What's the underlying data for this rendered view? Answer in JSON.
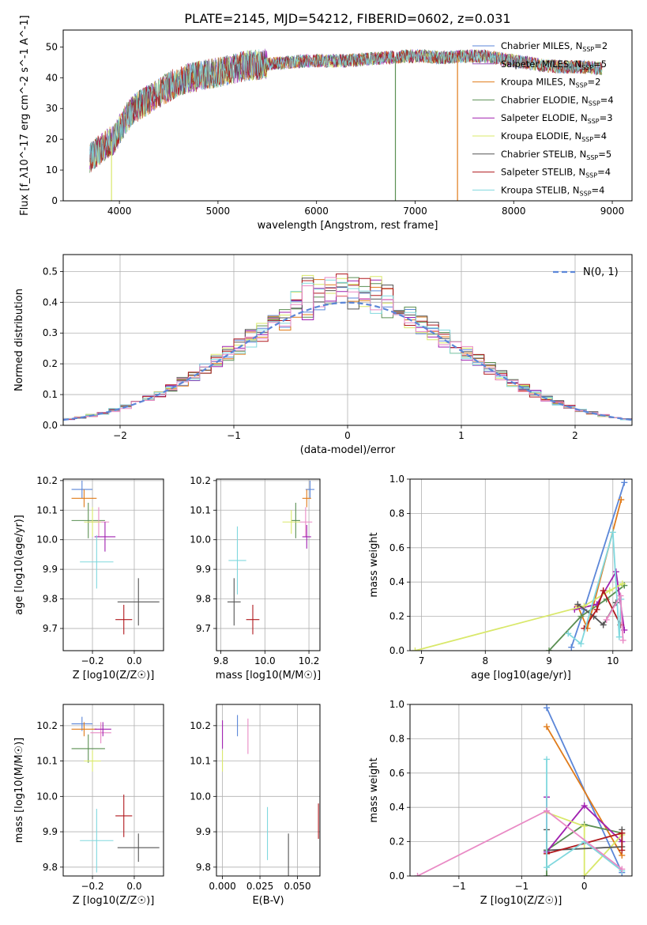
{
  "figure": {
    "title": "PLATE=2145, MJD=54212, FIBERID=0602, z=0.031"
  },
  "colors": {
    "palette": [
      "#5b86d8",
      "#9b59b6",
      "#e07b1a",
      "#5a8f52",
      "#a020b0",
      "#d9e86a",
      "#555555",
      "#b0191e",
      "#80d8de",
      "#e98ac5"
    ],
    "gauss": "#5b86d8",
    "grid": "#b0b0b0"
  },
  "chart_data": [
    {
      "id": "spectrum",
      "type": "line",
      "xlabel": "wavelength [Angstrom, rest frame]",
      "ylabel": "Flux [f_λ10^-17 erg cm^-2 s^-1 A^-1]",
      "xlim": [
        3430,
        9200
      ],
      "ylim": [
        0,
        55.5
      ],
      "xticks": [
        4000,
        5000,
        6000,
        7000,
        8000,
        9000
      ],
      "yticks": [
        0,
        10,
        20,
        30,
        40,
        50
      ],
      "grid": false,
      "legend_position": "top-right",
      "legend": [
        {
          "label": "Chabrier MILES, N",
          "sub": "SSP",
          "tail": "=2"
        },
        {
          "label": "Salpeter MILES, N",
          "sub": "SSP",
          "tail": "=5"
        },
        {
          "label": "Kroupa MILES, N",
          "sub": "SSP",
          "tail": "=2"
        },
        {
          "label": "Chabrier ELODIE, N",
          "sub": "SSP",
          "tail": "=4"
        },
        {
          "label": "Salpeter ELODIE, N",
          "sub": "SSP",
          "tail": "=3"
        },
        {
          "label": "Kroupa ELODIE, N",
          "sub": "SSP",
          "tail": "=4"
        },
        {
          "label": "Chabrier STELIB, N",
          "sub": "SSP",
          "tail": "=5"
        },
        {
          "label": "Salpeter STELIB, N",
          "sub": "SSP",
          "tail": "=4"
        },
        {
          "label": "Kroupa STELIB, N",
          "sub": "SSP",
          "tail": "=4"
        }
      ],
      "series_color_index": [
        0,
        1,
        2,
        3,
        4,
        5,
        6,
        7,
        8
      ],
      "continuum": {
        "x": [
          3700,
          3850,
          3950,
          4050,
          4150,
          4250,
          4350,
          4450,
          4550,
          4650,
          4800,
          4950,
          5100,
          5300,
          5500,
          5700,
          5900,
          6100,
          6300,
          6500,
          6700,
          6900,
          7100,
          7300,
          7500,
          7700,
          7900,
          8100,
          8300,
          8500,
          8700,
          8900
        ],
        "y": [
          14,
          18,
          20,
          26,
          30,
          32,
          34,
          36,
          38,
          39.5,
          40.5,
          41.5,
          42.5,
          44,
          44.5,
          45,
          45.5,
          45.5,
          45.5,
          46,
          46.5,
          47,
          47,
          46.5,
          47,
          47,
          46,
          45,
          44,
          43.5,
          43.5,
          43
        ]
      },
      "dropouts": [
        {
          "x": 3920,
          "y": 0
        },
        {
          "x": 6800,
          "y": 0
        },
        {
          "x": 7430,
          "y": 0
        }
      ]
    },
    {
      "id": "residual-hist",
      "type": "histogram",
      "xlabel": "(data-model)/error",
      "ylabel": "Normed distribution",
      "xlim": [
        -2.5,
        2.5
      ],
      "ylim": [
        0,
        0.555
      ],
      "xticks": [
        -2,
        -1,
        0,
        1,
        2
      ],
      "yticks": [
        0.0,
        0.1,
        0.2,
        0.3,
        0.4,
        0.5
      ],
      "grid": true,
      "legend_position": "top-right",
      "gauss_label": "N(0, 1)",
      "bin_width": 0.1,
      "series_count": 9
    },
    {
      "id": "age-vs-z",
      "type": "scatter",
      "xlabel": "Z [log10(Z/Z☉)]",
      "ylabel": "age  [log10(age/yr)]",
      "xlim": [
        -0.34,
        0.14
      ],
      "ylim": [
        9.625,
        10.205
      ],
      "xticks": [
        -0.2,
        0.0
      ],
      "yticks": [
        9.7,
        9.8,
        9.9,
        10.0,
        10.1,
        10.2
      ],
      "grid": true,
      "points": [
        {
          "x": -0.25,
          "y": 10.17,
          "xerr": 0.05,
          "yerr": 0.03,
          "c": 0
        },
        {
          "x": -0.24,
          "y": 10.14,
          "xerr": 0.06,
          "yerr": 0.03,
          "c": 2
        },
        {
          "x": -0.22,
          "y": 10.065,
          "xerr": 0.08,
          "yerr": 0.06,
          "c": 3
        },
        {
          "x": -0.17,
          "y": 10.06,
          "xerr": 0.05,
          "yerr": 0.05,
          "c": 9
        },
        {
          "x": -0.2,
          "y": 10.06,
          "xerr": 0.04,
          "yerr": 0.05,
          "c": 5
        },
        {
          "x": -0.14,
          "y": 10.01,
          "xerr": 0.05,
          "yerr": 0.05,
          "c": 4
        },
        {
          "x": -0.18,
          "y": 9.925,
          "xerr": 0.08,
          "yerr": 0.09,
          "c": 8
        },
        {
          "x": 0.02,
          "y": 9.79,
          "xerr": 0.1,
          "yerr": 0.08,
          "c": 6
        },
        {
          "x": -0.05,
          "y": 9.73,
          "xerr": 0.04,
          "yerr": 0.05,
          "c": 7
        }
      ]
    },
    {
      "id": "age-vs-mass",
      "type": "scatter",
      "xlabel": "mass [log10(M/M☉)]",
      "ylabel": "",
      "xlim": [
        9.78,
        10.25
      ],
      "ylim": [
        9.625,
        10.205
      ],
      "xticks": [
        9.8,
        10.0,
        10.2
      ],
      "yticks": [
        9.7,
        9.8,
        9.9,
        10.0,
        10.1,
        10.2
      ],
      "grid": true,
      "points": [
        {
          "x": 10.205,
          "y": 10.17,
          "xerr": 0.02,
          "yerr": 0.03,
          "c": 0
        },
        {
          "x": 10.19,
          "y": 10.14,
          "xerr": 0.02,
          "yerr": 0.03,
          "c": 2
        },
        {
          "x": 10.14,
          "y": 10.065,
          "xerr": 0.02,
          "yerr": 0.06,
          "c": 3
        },
        {
          "x": 10.185,
          "y": 10.06,
          "xerr": 0.03,
          "yerr": 0.05,
          "c": 9
        },
        {
          "x": 10.12,
          "y": 10.06,
          "xerr": 0.04,
          "yerr": 0.04,
          "c": 5
        },
        {
          "x": 10.19,
          "y": 10.01,
          "xerr": 0.02,
          "yerr": 0.04,
          "c": 4
        },
        {
          "x": 9.875,
          "y": 9.93,
          "xerr": 0.04,
          "yerr": 0.115,
          "c": 8
        },
        {
          "x": 9.86,
          "y": 9.79,
          "xerr": 0.03,
          "yerr": 0.08,
          "c": 6
        },
        {
          "x": 9.945,
          "y": 9.73,
          "xerr": 0.03,
          "yerr": 0.05,
          "c": 7
        }
      ]
    },
    {
      "id": "mass-weight-vs-age",
      "type": "line",
      "xlabel": "age  [log10(age/yr)]",
      "ylabel": "mass weight",
      "xlim": [
        6.82,
        10.3
      ],
      "ylim": [
        0,
        1
      ],
      "xticks": [
        7,
        8,
        9,
        10
      ],
      "yticks": [
        0.0,
        0.2,
        0.4,
        0.6,
        0.8,
        1.0
      ],
      "grid": true,
      "series": [
        {
          "c": 0,
          "x": [
            9.35,
            9.55,
            10.18
          ],
          "y": [
            0.02,
            0.24,
            0.98
          ]
        },
        {
          "c": 2,
          "x": [
            9.45,
            9.6,
            10.13
          ],
          "y": [
            0.26,
            0.13,
            0.88
          ]
        },
        {
          "c": 3,
          "x": [
            9.0,
            9.5,
            9.9,
            10.18
          ],
          "y": [
            0.0,
            0.2,
            0.3,
            0.38
          ]
        },
        {
          "c": 4,
          "x": [
            9.4,
            9.75,
            10.05,
            10.18
          ],
          "y": [
            0.24,
            0.27,
            0.46,
            0.12
          ]
        },
        {
          "c": 5,
          "x": [
            6.9,
            9.55,
            9.95,
            10.15
          ],
          "y": [
            0.0,
            0.26,
            0.35,
            0.39
          ]
        },
        {
          "c": 6,
          "x": [
            9.45,
            9.7,
            9.85,
            10.05
          ],
          "y": [
            0.27,
            0.2,
            0.15,
            0.28
          ]
        },
        {
          "c": 7,
          "x": [
            9.55,
            9.75,
            9.85,
            10.12
          ],
          "y": [
            0.13,
            0.24,
            0.35,
            0.15
          ]
        },
        {
          "c": 8,
          "x": [
            9.3,
            9.5,
            10.0,
            10.1,
            10.13
          ],
          "y": [
            0.1,
            0.04,
            0.69,
            0.08,
            0.3
          ]
        },
        {
          "c": 9,
          "x": [
            9.9,
            10.12,
            10.16
          ],
          "y": [
            0.18,
            0.32,
            0.06
          ]
        }
      ]
    },
    {
      "id": "mass-vs-z",
      "type": "scatter",
      "xlabel": "Z [log10(Z/Z☉)]",
      "ylabel": "mass [log10(M/M☉)]",
      "xlim": [
        -0.34,
        0.14
      ],
      "ylim": [
        9.775,
        10.26
      ],
      "xticks": [
        -0.2,
        0.0
      ],
      "yticks": [
        9.8,
        9.9,
        10.0,
        10.1,
        10.2
      ],
      "grid": true,
      "points": [
        {
          "x": -0.25,
          "y": 10.205,
          "xerr": 0.05,
          "yerr": 0.02,
          "c": 0
        },
        {
          "x": -0.24,
          "y": 10.19,
          "xerr": 0.06,
          "yerr": 0.02,
          "c": 2
        },
        {
          "x": -0.22,
          "y": 10.135,
          "xerr": 0.08,
          "yerr": 0.04,
          "c": 3
        },
        {
          "x": -0.16,
          "y": 10.18,
          "xerr": 0.05,
          "yerr": 0.03,
          "c": 9
        },
        {
          "x": -0.2,
          "y": 10.1,
          "xerr": 0.04,
          "yerr": 0.03,
          "c": 5
        },
        {
          "x": -0.15,
          "y": 10.19,
          "xerr": 0.04,
          "yerr": 0.02,
          "c": 4
        },
        {
          "x": -0.18,
          "y": 9.875,
          "xerr": 0.08,
          "yerr": 0.09,
          "c": 8
        },
        {
          "x": 0.02,
          "y": 9.855,
          "xerr": 0.1,
          "yerr": 0.04,
          "c": 6
        },
        {
          "x": -0.05,
          "y": 9.945,
          "xerr": 0.04,
          "yerr": 0.06,
          "c": 7
        }
      ]
    },
    {
      "id": "mass-vs-ebv",
      "type": "scatter",
      "xlabel": "E(B-V)",
      "ylabel": "",
      "xlim": [
        -0.004,
        0.065
      ],
      "ylim": [
        9.775,
        10.26
      ],
      "xticks": [
        0.0,
        0.025,
        0.05
      ],
      "ytick_labels_only": true,
      "yticks": [
        9.8,
        9.9,
        10.0,
        10.1,
        10.2
      ],
      "grid": true,
      "points": [
        {
          "x": 0.0,
          "y": 10.175,
          "xerr": 0.0,
          "yerr": 0.04,
          "c": 4
        },
        {
          "x": 0.0,
          "y": 10.1,
          "xerr": 0.0,
          "yerr": 0.03,
          "c": 5
        },
        {
          "x": 0.01,
          "y": 10.2,
          "xerr": 0.0,
          "yerr": 0.03,
          "c": 0
        },
        {
          "x": 0.017,
          "y": 10.17,
          "xerr": 0.0,
          "yerr": 0.05,
          "c": 9
        },
        {
          "x": 0.03,
          "y": 9.895,
          "xerr": 0.0,
          "yerr": 0.075,
          "c": 8
        },
        {
          "x": 0.044,
          "y": 9.82,
          "xerr": 0.0,
          "yerr": 0.075,
          "c": 6
        },
        {
          "x": 0.064,
          "y": 9.93,
          "xerr": 0.0,
          "yerr": 0.05,
          "c": 7
        }
      ]
    },
    {
      "id": "mass-weight-vs-z",
      "type": "line",
      "xlabel": "Z [log10(Z/Z☉)]",
      "ylabel": "mass weight",
      "xlim": [
        -1.39,
        0.38
      ],
      "ylim": [
        0,
        1
      ],
      "xticks": [
        -1.0,
        -0.5,
        0.0
      ],
      "yticks": [
        0.0,
        0.2,
        0.4,
        0.6,
        0.8,
        1.0
      ],
      "grid": true,
      "series": [
        {
          "c": 0,
          "x": [
            -0.3,
            0.3
          ],
          "y": [
            0.98,
            0.02
          ]
        },
        {
          "c": 2,
          "x": [
            -0.3,
            0.3
          ],
          "y": [
            0.87,
            0.12
          ]
        },
        {
          "c": 3,
          "x": [
            -0.3,
            -0.3,
            0.0,
            0.3
          ],
          "y": [
            0.0,
            0.15,
            0.3,
            0.25
          ]
        },
        {
          "c": 4,
          "x": [
            -0.3,
            -0.3,
            0.0,
            0.3
          ],
          "y": [
            0.46,
            0.14,
            0.41,
            0.2
          ]
        },
        {
          "c": 5,
          "x": [
            -0.3,
            0.0,
            0.0,
            0.3
          ],
          "y": [
            0.37,
            0.29,
            0.0,
            0.24
          ]
        },
        {
          "c": 6,
          "x": [
            -0.3,
            -0.3,
            0.3,
            0.3
          ],
          "y": [
            0.27,
            0.15,
            0.17,
            0.27
          ]
        },
        {
          "c": 7,
          "x": [
            -0.3,
            0.3,
            0.3
          ],
          "y": [
            0.13,
            0.25,
            0.15
          ]
        },
        {
          "c": 8,
          "x": [
            -0.3,
            -0.3,
            0.0,
            0.3
          ],
          "y": [
            0.68,
            0.05,
            0.2,
            0.03
          ]
        },
        {
          "c": 9,
          "x": [
            -1.33,
            -0.3,
            0.3
          ],
          "y": [
            0.0,
            0.38,
            0.04
          ]
        }
      ]
    }
  ]
}
